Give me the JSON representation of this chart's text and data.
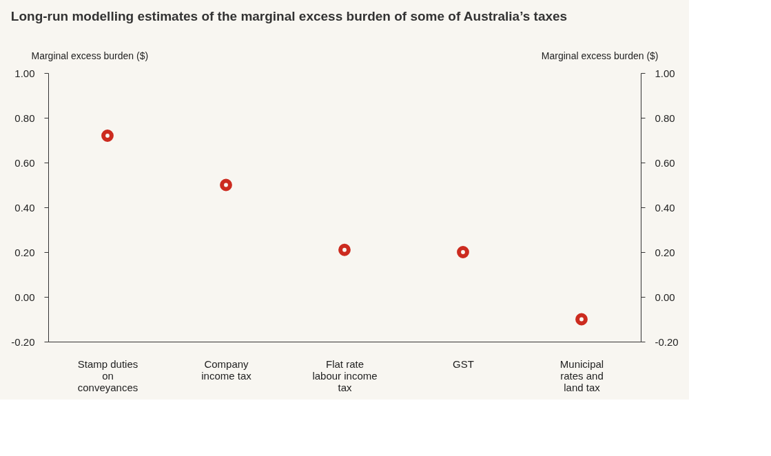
{
  "chart_data": {
    "type": "scatter",
    "title": "Long-run modelling estimates of the marginal excess burden of some of Australia’s taxes",
    "categories": [
      "Stamp duties on conveyances",
      "Company income tax",
      "Flat rate labour income tax",
      "GST",
      "Municipal rates and land tax"
    ],
    "series": [
      {
        "color": "#cc2b1f",
        "values": [
          0.72,
          0.5,
          0.21,
          0.2,
          -0.1
        ]
      }
    ],
    "ylabel": "Marginal excess burden ($)",
    "y2label": "Marginal excess burden ($)",
    "ylim": [
      -0.2,
      1.0
    ],
    "yticks": [
      {
        "value": -0.2,
        "label": "-0.20"
      },
      {
        "value": 0,
        "label": "0.00"
      },
      {
        "value": 0.2,
        "label": "0.20"
      },
      {
        "value": 0.4,
        "label": "0.40"
      },
      {
        "value": 0.6,
        "label": "0.60"
      },
      {
        "value": 0.8,
        "label": "0.80"
      },
      {
        "value": 1.0,
        "label": "1.00"
      }
    ],
    "y2lim": [
      -0.2,
      1.0
    ],
    "y2ticks": [
      {
        "value": -0.2,
        "label": "-0.20"
      },
      {
        "value": 0,
        "label": "0.00"
      },
      {
        "value": 0.2,
        "label": "0.20"
      },
      {
        "value": 0.4,
        "label": "0.40"
      },
      {
        "value": 0.6,
        "label": "0.60"
      },
      {
        "value": 0.8,
        "label": "0.80"
      },
      {
        "value": 1.0,
        "label": "1.00"
      }
    ],
    "marker": "circle",
    "grid": false,
    "legend": false
  }
}
